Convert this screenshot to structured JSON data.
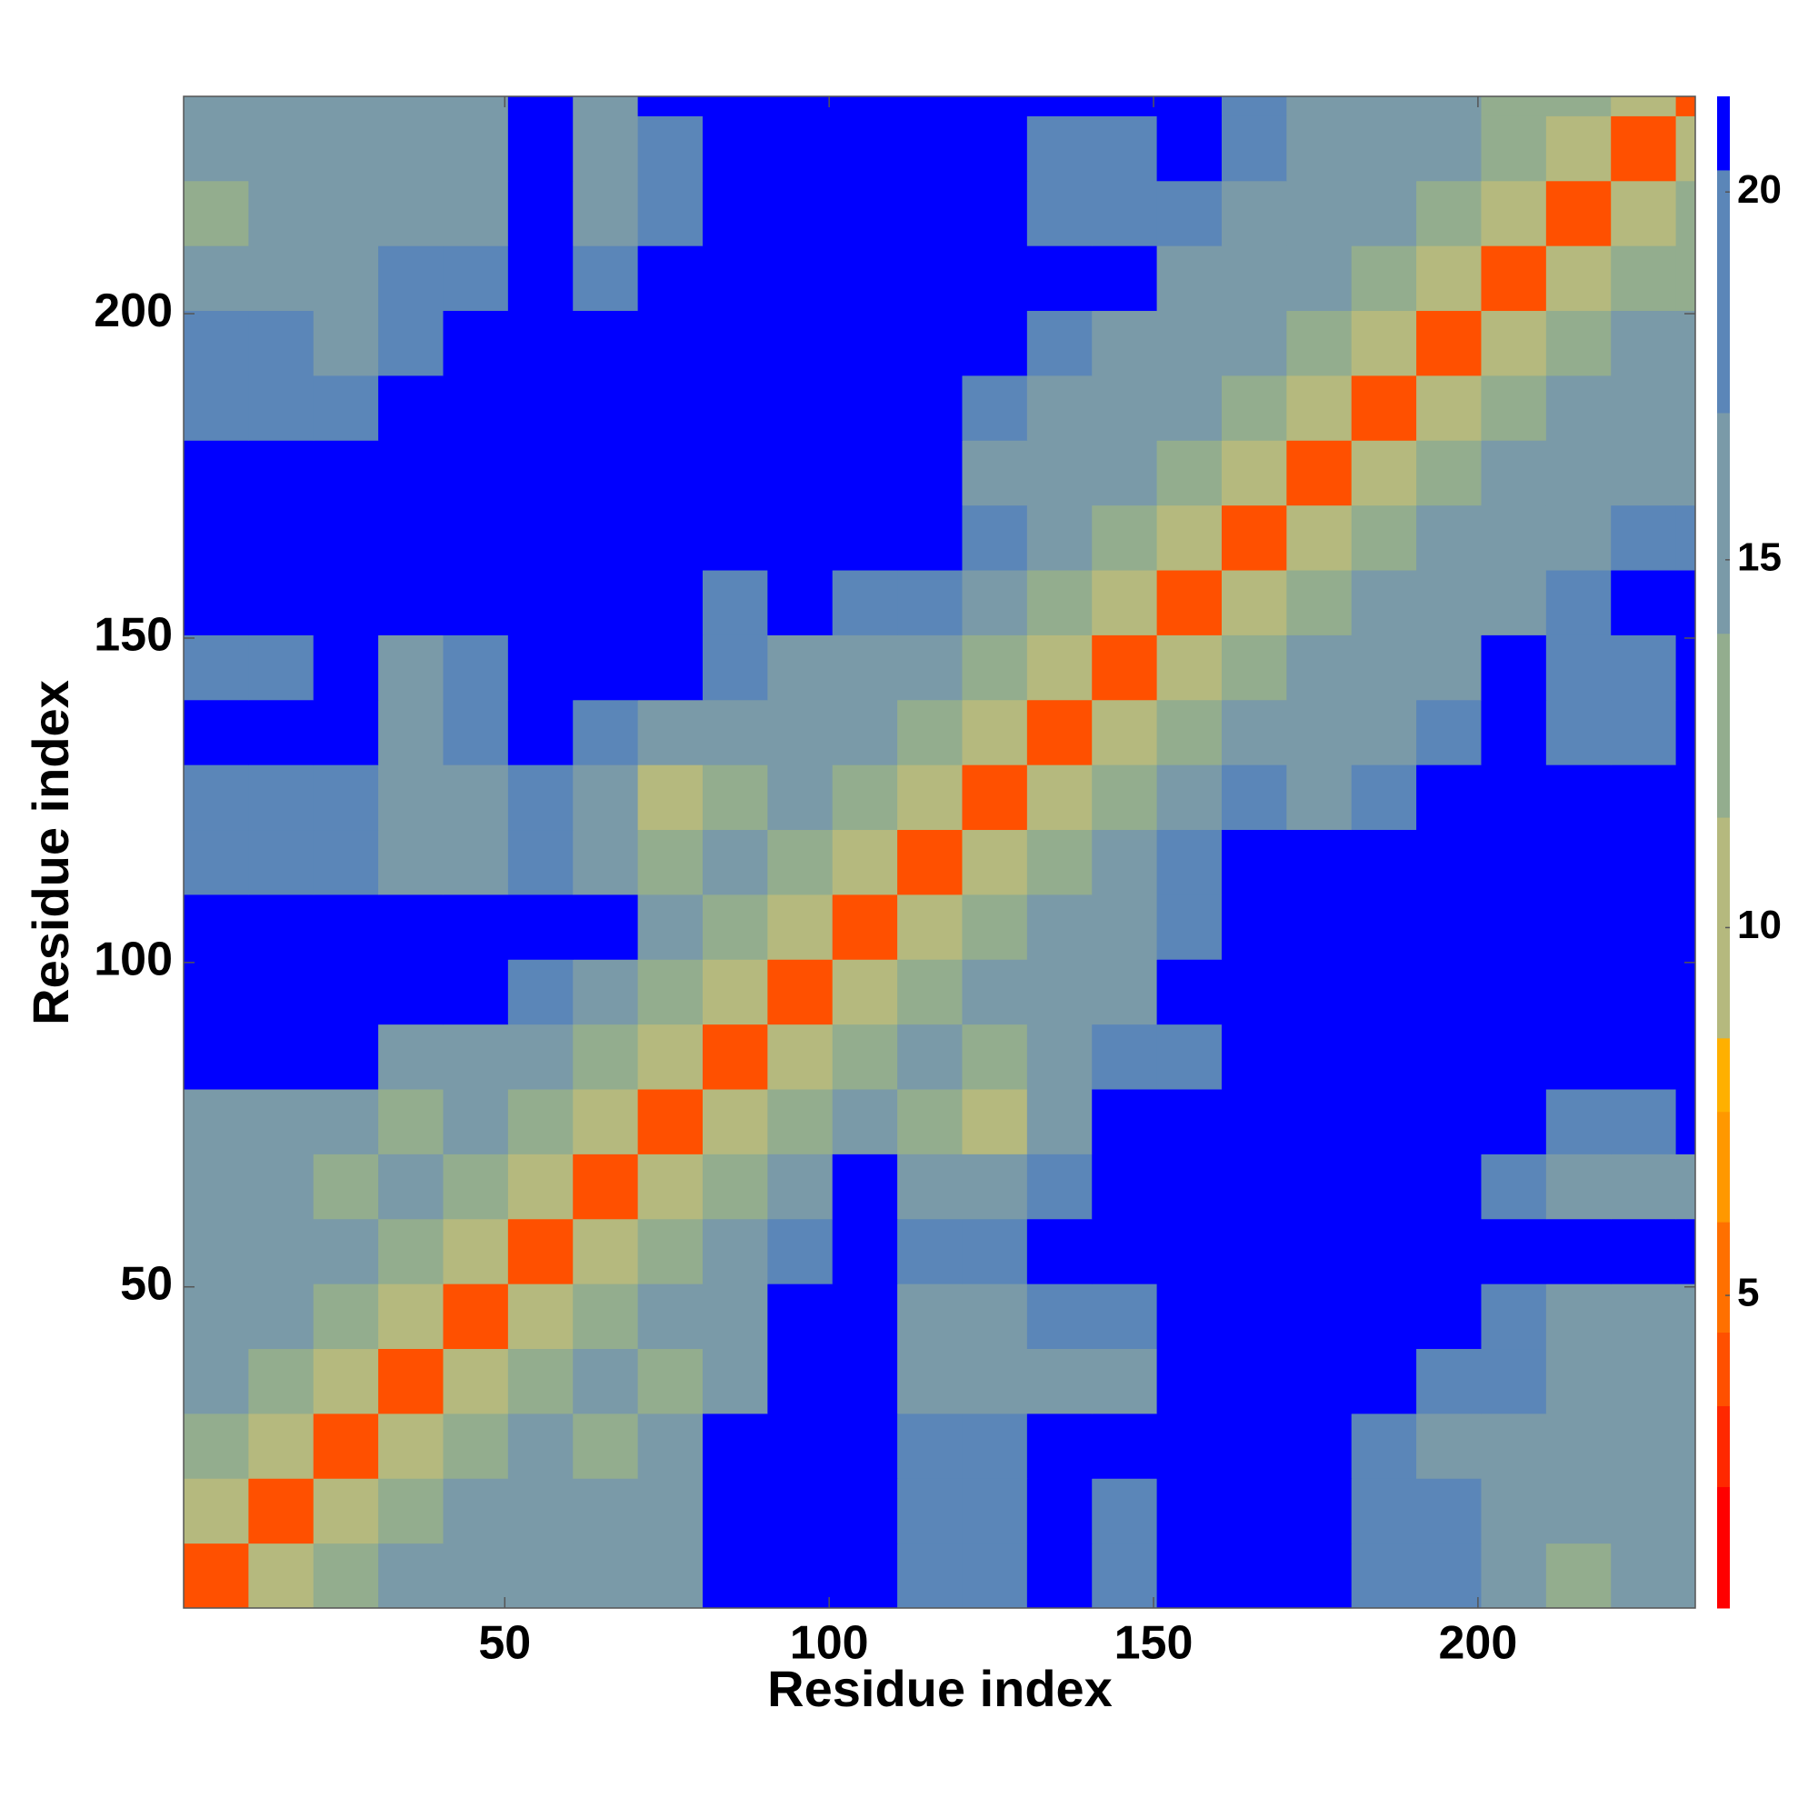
{
  "chart_data": {
    "type": "heatmap",
    "xlabel": "Residue index",
    "ylabel": "Residue index",
    "xbins": [
      0.5,
      10.5,
      20.5,
      30.5,
      40.5,
      50.5,
      60.5,
      70.5,
      80.5,
      90.5,
      100.5,
      110.5,
      120.5,
      130.5,
      140.5,
      150.5,
      160.5,
      170.5,
      180.5,
      190.5,
      200.5,
      210.5,
      220.5,
      230.5,
      233.5
    ],
    "ybins": [
      0.5,
      10.5,
      20.5,
      30.5,
      40.5,
      50.5,
      60.5,
      70.5,
      80.5,
      90.5,
      100.5,
      110.5,
      120.5,
      130.5,
      140.5,
      150.5,
      160.5,
      170.5,
      180.5,
      190.5,
      200.5,
      210.5,
      220.5,
      230.5,
      233.5
    ],
    "xlim": [
      0.5,
      233.5
    ],
    "ylim": [
      0.5,
      233.5
    ],
    "xticks": [
      50,
      100,
      150,
      200
    ],
    "yticks": [
      50,
      100,
      150,
      200
    ],
    "clim": [
      0.75,
      21.3
    ],
    "cticks": [
      5,
      10,
      15,
      20
    ],
    "levels": [
      0.75,
      2.4,
      3.5,
      4.5,
      6,
      7.5,
      8.5,
      11.5,
      14,
      17,
      20.3,
      21.3
    ],
    "colors": [
      "#ff0000",
      "#ff2800",
      "#ff5000",
      "#ff7000",
      "#ff9800",
      "#ffb000",
      "#b5b97e",
      "#93ad8e",
      "#7a9aa8",
      "#5b86b8",
      "#0000ff"
    ],
    "values": [
      [
        3.8,
        9,
        13,
        14,
        15,
        15,
        16,
        14,
        21,
        21,
        21,
        17,
        17,
        21,
        18,
        21,
        21,
        21,
        17,
        17,
        15,
        13,
        14,
        14
      ],
      [
        9,
        3.8,
        9,
        13,
        14,
        15,
        15,
        15,
        21,
        21,
        21,
        17,
        18,
        21,
        18,
        21,
        21,
        21,
        18,
        17,
        15,
        14,
        14,
        15
      ],
      [
        13,
        9,
        3.8,
        9,
        13,
        14,
        13,
        14,
        21,
        21,
        21,
        17,
        18,
        21,
        21,
        21,
        21,
        21,
        18,
        16,
        15,
        14,
        15,
        15
      ],
      [
        14,
        13,
        9,
        3.8,
        9,
        13,
        14,
        13,
        16,
        21,
        21,
        16,
        16,
        16,
        16,
        21,
        21,
        21,
        21,
        18,
        17,
        15,
        16,
        16
      ],
      [
        15,
        14,
        13,
        9,
        3.8,
        9,
        13,
        14,
        16,
        21,
        21,
        16,
        16,
        17,
        17,
        21,
        21,
        21,
        21,
        21,
        17,
        16,
        16,
        16
      ],
      [
        15,
        15,
        14,
        13,
        9,
        3.8,
        9,
        13,
        15,
        17,
        21,
        18,
        18,
        21,
        21,
        21,
        21,
        21,
        21,
        21,
        21,
        21,
        21,
        21
      ],
      [
        16,
        15,
        13,
        14,
        13,
        9,
        3.8,
        9,
        13,
        15,
        21,
        16,
        16,
        18,
        21,
        21,
        21,
        21,
        21,
        21,
        17,
        16,
        16,
        16
      ],
      [
        14,
        15,
        14,
        13,
        14,
        13,
        9,
        3.8,
        9,
        13,
        15,
        13,
        11,
        16,
        21,
        21,
        21,
        21,
        21,
        21,
        21,
        18,
        17,
        21
      ],
      [
        21,
        21,
        21,
        16,
        16,
        15,
        13,
        9,
        3.8,
        9,
        13,
        14,
        13,
        15,
        17,
        17,
        21,
        21,
        21,
        21,
        21,
        21,
        21,
        21
      ],
      [
        21,
        21,
        21,
        21,
        21,
        17,
        15,
        13,
        9,
        3.8,
        9,
        13,
        14,
        14,
        16,
        21,
        21,
        21,
        21,
        21,
        21,
        21,
        21,
        21
      ],
      [
        21,
        21,
        21,
        21,
        21,
        21,
        21,
        15,
        13,
        9,
        3.8,
        9,
        13,
        14,
        15,
        18,
        21,
        21,
        21,
        21,
        21,
        21,
        21,
        21
      ],
      [
        17,
        17,
        17,
        16,
        16,
        18,
        16,
        13,
        14,
        13,
        9,
        3.8,
        9,
        13,
        14,
        17,
        21,
        21,
        21,
        21,
        21,
        21,
        21,
        21
      ],
      [
        17,
        18,
        18,
        16,
        16,
        18,
        16,
        11,
        13,
        14,
        13,
        9,
        3.8,
        9,
        13,
        15,
        17,
        16,
        18,
        21,
        21,
        21,
        21,
        21
      ],
      [
        21,
        21,
        21,
        16,
        17,
        21,
        18,
        16,
        15,
        14,
        14,
        13,
        9,
        3.8,
        9,
        13,
        16,
        15,
        15,
        17,
        21,
        18,
        18,
        21
      ],
      [
        18,
        18,
        21,
        16,
        17,
        21,
        21,
        21,
        17,
        16,
        15,
        14,
        13,
        9,
        3.8,
        9,
        13,
        15,
        15,
        16,
        21,
        18,
        18,
        21
      ],
      [
        21,
        21,
        21,
        21,
        21,
        21,
        21,
        21,
        17,
        21,
        18,
        17,
        15,
        13,
        9,
        3.8,
        9,
        13,
        14,
        16,
        16,
        18,
        21,
        21
      ],
      [
        21,
        21,
        21,
        21,
        21,
        21,
        21,
        21,
        21,
        21,
        21,
        21,
        17,
        16,
        13,
        9,
        3.8,
        9,
        13,
        15,
        15,
        16,
        17,
        18
      ],
      [
        21,
        21,
        21,
        21,
        21,
        21,
        21,
        21,
        21,
        21,
        21,
        21,
        16,
        15,
        15,
        13,
        9,
        3.8,
        9,
        13,
        14,
        15,
        15,
        15
      ],
      [
        17,
        18,
        18,
        21,
        21,
        21,
        21,
        21,
        21,
        21,
        21,
        21,
        18,
        15,
        15,
        14,
        13,
        9,
        3.8,
        9,
        13,
        15,
        14,
        15
      ],
      [
        17,
        17,
        16,
        18,
        21,
        21,
        21,
        21,
        21,
        21,
        21,
        21,
        21,
        17,
        16,
        16,
        15,
        13,
        9,
        3.8,
        9,
        13,
        14,
        15
      ],
      [
        15,
        15,
        15,
        17,
        17,
        21,
        17,
        21,
        21,
        21,
        21,
        21,
        21,
        21,
        21,
        16,
        15,
        14,
        13,
        9,
        3.8,
        9,
        13,
        13
      ],
      [
        13,
        14,
        14,
        15,
        16,
        21,
        16,
        18,
        21,
        21,
        21,
        21,
        21,
        18,
        18,
        18,
        16,
        15,
        15,
        13,
        9,
        3.8,
        9,
        13
      ],
      [
        14,
        14,
        15,
        16,
        16,
        21,
        16,
        17,
        21,
        21,
        21,
        21,
        21,
        18,
        18,
        21,
        17,
        15,
        14,
        14,
        13,
        9,
        3.8,
        9
      ],
      [
        14,
        15,
        15,
        16,
        16,
        21,
        16,
        21,
        21,
        21,
        21,
        21,
        21,
        21,
        21,
        21,
        18,
        15,
        15,
        15,
        13,
        13,
        9,
        3.8
      ]
    ]
  }
}
